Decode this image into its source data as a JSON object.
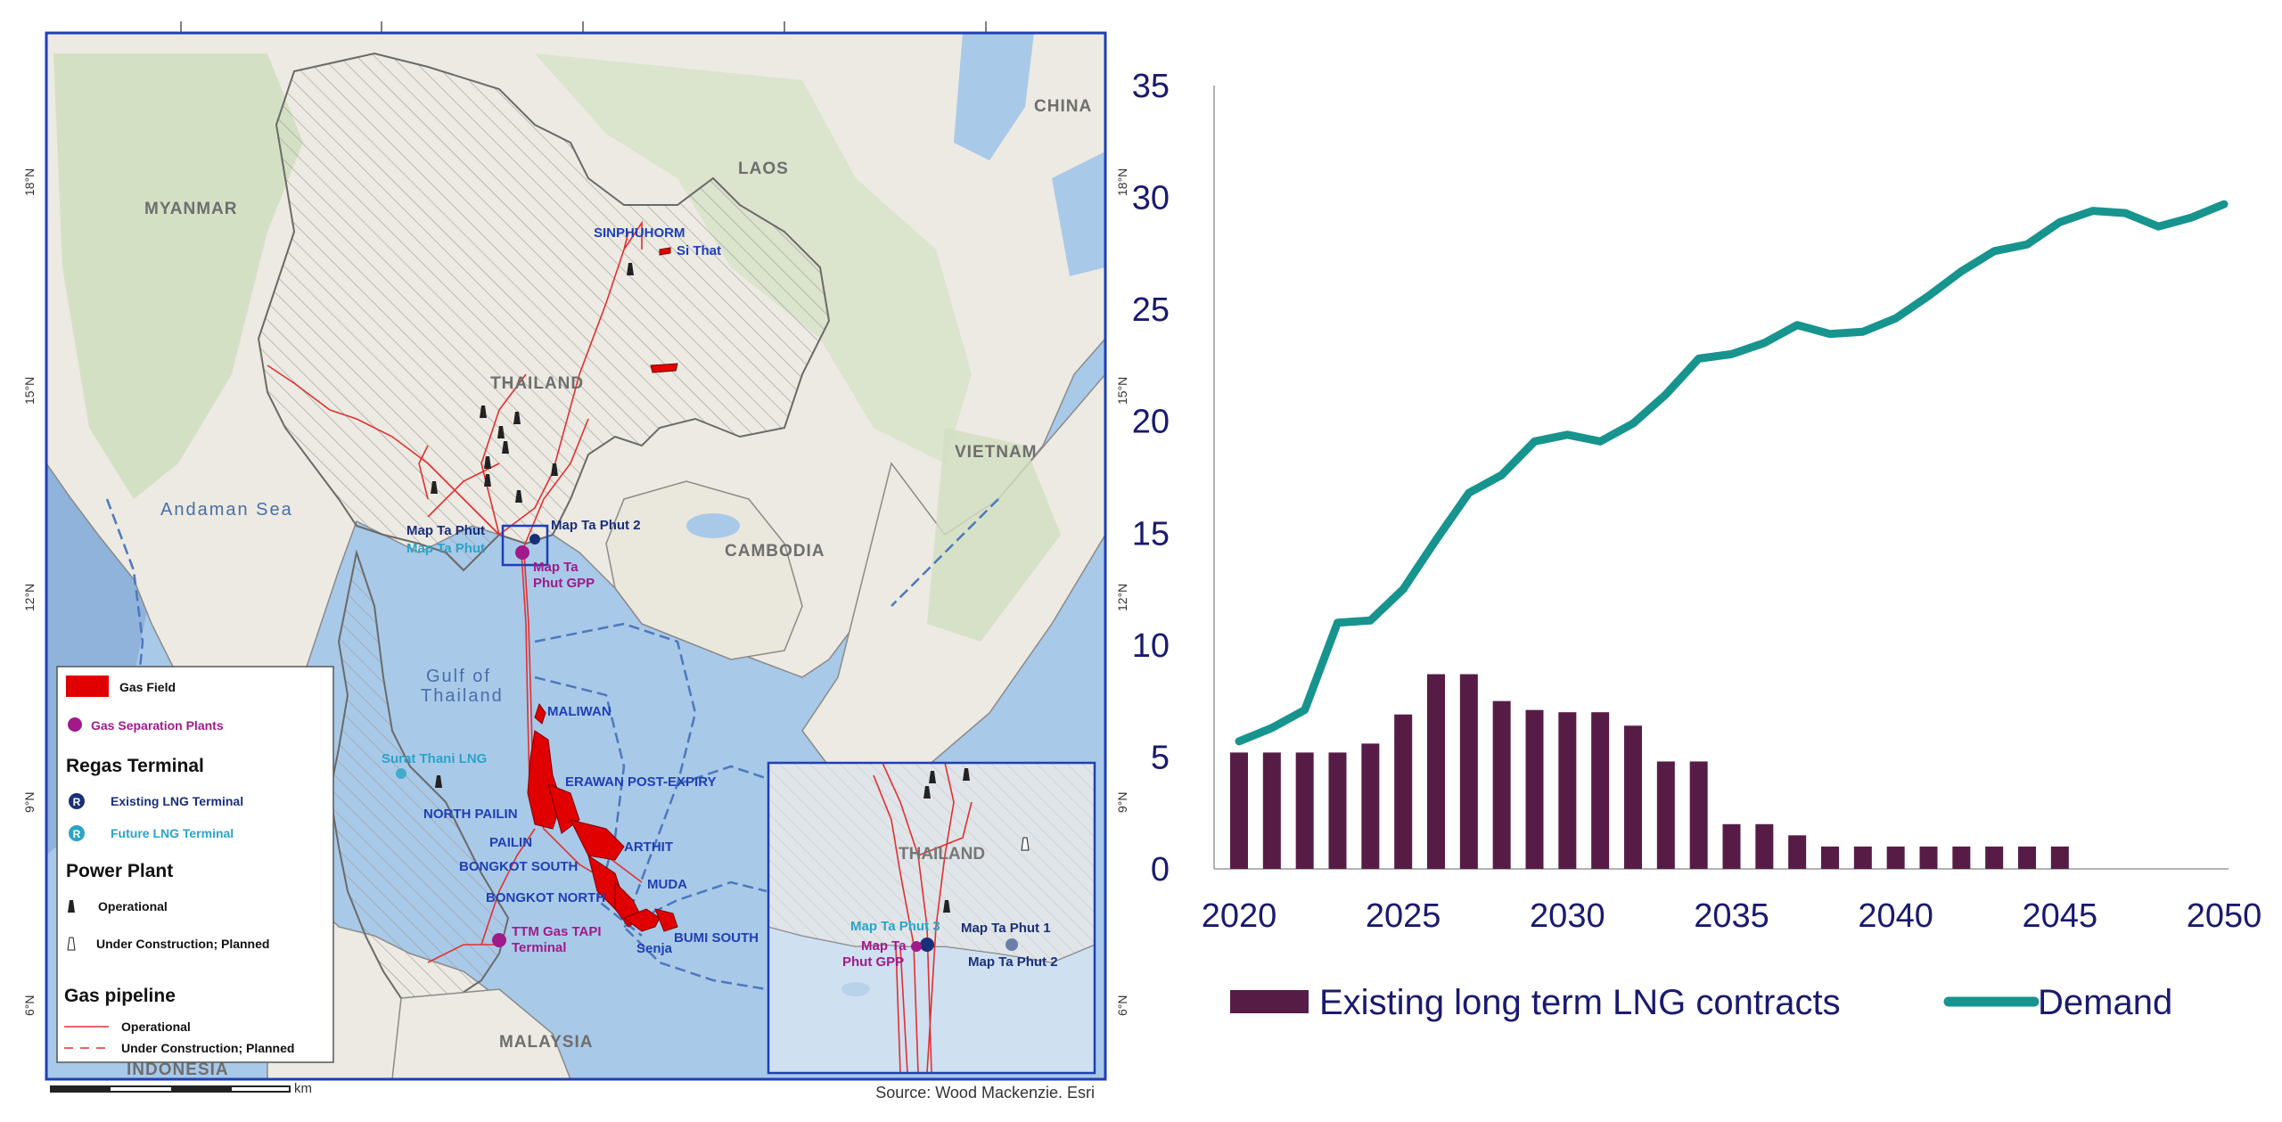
{
  "map": {
    "countries": [
      "MYANMAR",
      "LAOS",
      "THAILAND",
      "CAMBODIA",
      "VIETNAM",
      "CHINA",
      "MALAYSIA",
      "INDONESIA"
    ],
    "seas": [
      "Andaman Sea",
      "Gulf of",
      "Thailand"
    ],
    "fields": [
      "SINPHUHORM",
      "Si That",
      "MALIWAN",
      "ERAWAN POST-EXPIRY",
      "NORTH PAILIN",
      "PAILIN",
      "ARTHIT",
      "BONGKOT SOUTH",
      "BONGKOT NORTH",
      "MUDA",
      "BUMI SOUTH",
      "Senja"
    ],
    "terminals": [
      "Map Ta Phut",
      "Map Ta Phut 2",
      "Map Ta Phut 3",
      "Map Ta Phut 1",
      "Surat Thani LNG"
    ],
    "plants": [
      "Map Ta",
      "Phut GPP",
      "TTM Gas TAPI",
      "Terminal"
    ],
    "inset_labels": [
      "THAILAND",
      "Map Ta Phut 3",
      "Map Ta Phut 1",
      "Map Ta",
      "Phut GPP",
      "Map Ta Phut 2"
    ],
    "latitudes": [
      "18°N",
      "15°N",
      "12°N",
      "9°N",
      "6°N"
    ],
    "scale_unit": "km",
    "source": "Source: Wood Mackenzie. Esri",
    "legend": {
      "gas_field": "Gas Field",
      "gas_sep": "Gas Separation Plants",
      "regas_head": "Regas Terminal",
      "existing_lng": "Existing LNG Terminal",
      "future_lng": "Future LNG Terminal",
      "power_head": "Power Plant",
      "operational": "Operational",
      "under_construction": "Under Construction; Planned",
      "pipeline_head": "Gas pipeline",
      "pipe_operational": "Operational",
      "pipe_under_construction": "Under Construction; Planned"
    },
    "colors": {
      "sea": "#a9c9e8",
      "land": "#eceae2",
      "forest": "#d2dfc1",
      "field": "#e00000",
      "pipeline": "#e03030",
      "border": "#1f3fb5"
    }
  },
  "chart_data": {
    "type": "bar",
    "x_ticks": [
      "2020",
      "2025",
      "2030",
      "2035",
      "2040",
      "2045",
      "2050"
    ],
    "y_ticks": [
      "0",
      "5",
      "10",
      "15",
      "20",
      "25",
      "30",
      "35"
    ],
    "ylim": [
      0,
      35
    ],
    "xlim": [
      2020,
      2050
    ],
    "series": [
      {
        "name": "Existing long term LNG contracts",
        "type": "bar",
        "color": "#571c46",
        "x": [
          2020,
          2021,
          2022,
          2023,
          2024,
          2025,
          2026,
          2027,
          2028,
          2029,
          2030,
          2031,
          2032,
          2033,
          2034,
          2035,
          2036,
          2037,
          2038,
          2039,
          2040,
          2041,
          2042,
          2043,
          2044,
          2045
        ],
        "values": [
          5.2,
          5.2,
          5.2,
          5.2,
          5.6,
          6.9,
          8.7,
          8.7,
          7.5,
          7.1,
          7.0,
          7.0,
          6.4,
          4.8,
          4.8,
          2.0,
          2.0,
          1.5,
          1.0,
          1.0,
          1.0,
          1.0,
          1.0,
          1.0,
          1.0,
          1.0
        ]
      },
      {
        "name": "Demand",
        "type": "line",
        "color": "#17948e",
        "x": [
          2020,
          2021,
          2022,
          2023,
          2024,
          2025,
          2026,
          2027,
          2028,
          2029,
          2030,
          2031,
          2032,
          2033,
          2034,
          2035,
          2036,
          2037,
          2038,
          2039,
          2040,
          2041,
          2042,
          2043,
          2044,
          2045,
          2046,
          2047,
          2048,
          2049,
          2050
        ],
        "values": [
          5.7,
          6.3,
          7.1,
          11.0,
          11.1,
          12.5,
          14.7,
          16.8,
          17.6,
          19.1,
          19.4,
          19.1,
          19.9,
          21.2,
          22.8,
          23.0,
          23.5,
          24.3,
          23.9,
          24.0,
          24.6,
          25.6,
          26.7,
          27.6,
          27.9,
          28.9,
          29.4,
          29.3,
          28.7,
          29.1,
          29.7
        ]
      }
    ]
  }
}
